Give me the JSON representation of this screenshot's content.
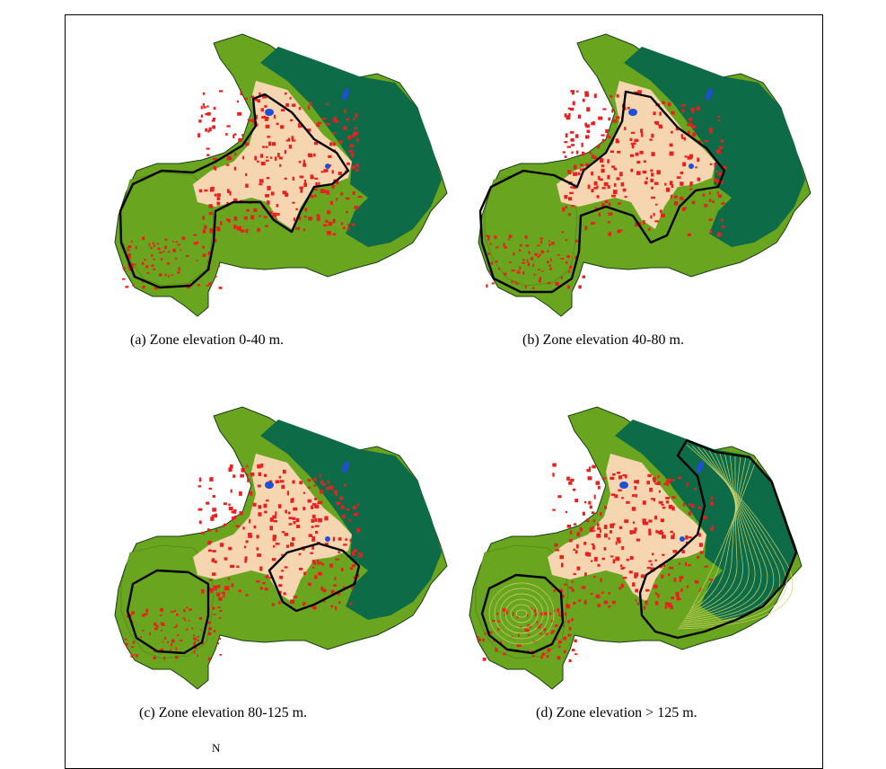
{
  "panels": [
    {
      "caption": "(a)  Zone elevation  0-40 m.",
      "zone": "0-40",
      "level": 0
    },
    {
      "caption": "(b)  Zone elevation  40-80 m.",
      "zone": "40-80",
      "level": 1
    },
    {
      "caption": "(c)  Zone elevation  80-125 m.",
      "zone": "80-125",
      "level": 2
    },
    {
      "caption": "(d)  Zone elevation > 125 m.",
      "zone": ">125",
      "level": 3
    }
  ],
  "north_label": "N",
  "colors": {
    "dark_forest": "#0e6b47",
    "light_green": "#6aa51f",
    "urban_red": "#e8201f",
    "sand": "#f6d6b0",
    "water": "#1f4fd8",
    "contour": "#c9d36a",
    "boundary": "#000000"
  }
}
